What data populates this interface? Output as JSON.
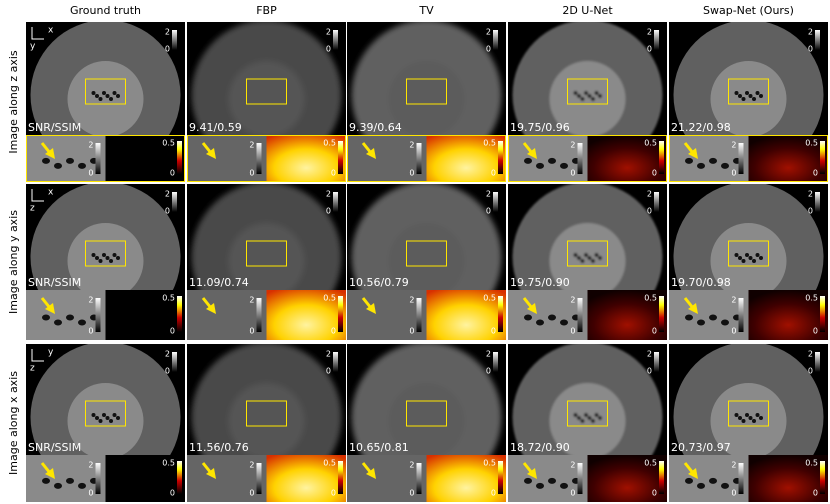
{
  "header": {
    "columns": [
      "Ground truth",
      "FBP",
      "TV",
      "2D U-Net",
      "Swap-Net (Ours)"
    ]
  },
  "colorbars": {
    "image": {
      "max": "2",
      "min": "0"
    },
    "error": {
      "max": "0.5",
      "min": "0"
    }
  },
  "rows": [
    {
      "label": "Image along z axis",
      "axes": [
        "x",
        "y"
      ],
      "metrics": [
        "SNR/SSIM",
        "9.41/0.59",
        "9.39/0.64",
        "19.75/0.96",
        "21.22/0.98"
      ]
    },
    {
      "label": "Image along y axis",
      "axes": [
        "x",
        "z"
      ],
      "metrics": [
        "SNR/SSIM",
        "11.09/0.74",
        "10.56/0.79",
        "19.75/0.90",
        "19.70/0.98"
      ]
    },
    {
      "label": "Image along x axis",
      "axes": [
        "y",
        "z"
      ],
      "metrics": [
        "SNR/SSIM",
        "11.56/0.76",
        "10.65/0.81",
        "18.72/0.90",
        "20.73/0.97"
      ]
    }
  ]
}
